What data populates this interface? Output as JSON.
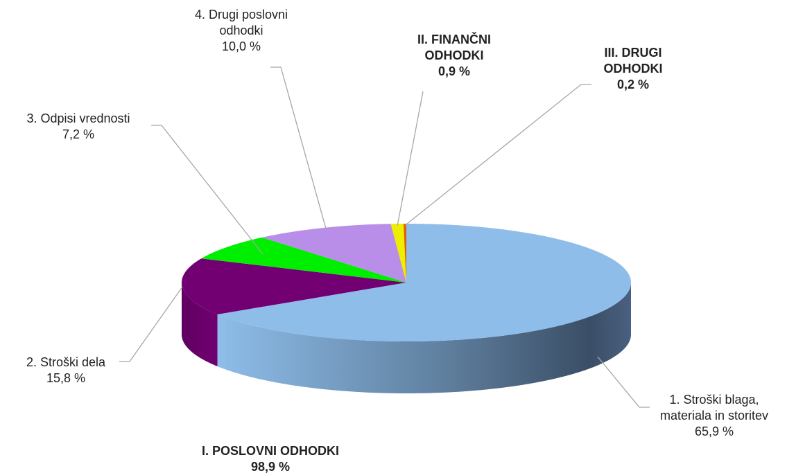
{
  "chart_data": {
    "type": "pie",
    "categories": [
      "1. Stroški blaga, materiala in storitev",
      "2. Stroški dela",
      "3. Odpisi vrednosti",
      "4. Drugi poslovni odhodki",
      "II. FINANČNI ODHODKI",
      "III. DRUGI ODHODKI"
    ],
    "values": [
      65.9,
      15.8,
      7.2,
      10.0,
      0.9,
      0.2
    ],
    "value_labels": [
      "65,9 %",
      "15,8 %",
      "7,2 %",
      "10,0 %",
      "0,9 %",
      "0,2 %"
    ],
    "colors": [
      "#8ebde9",
      "#720072",
      "#00ee00",
      "#b88ee8",
      "#eeee00",
      "#e06000"
    ],
    "annotations": [
      {
        "text": "I. POSLOVNI ODHODKI",
        "value_label": "98,9 %"
      }
    ]
  }
}
